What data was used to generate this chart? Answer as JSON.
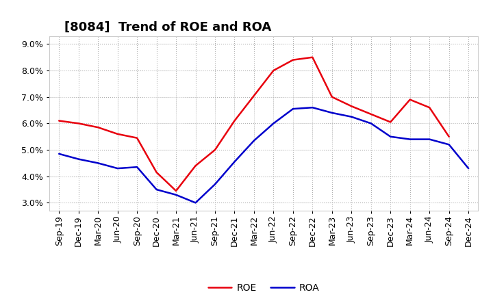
{
  "title": "[8084]  Trend of ROE and ROA",
  "x_labels": [
    "Sep-19",
    "Dec-19",
    "Mar-20",
    "Jun-20",
    "Sep-20",
    "Dec-20",
    "Mar-21",
    "Jun-21",
    "Sep-21",
    "Dec-21",
    "Mar-22",
    "Jun-22",
    "Sep-22",
    "Dec-22",
    "Mar-23",
    "Jun-23",
    "Sep-23",
    "Dec-23",
    "Mar-24",
    "Jun-24",
    "Sep-24",
    "Dec-24"
  ],
  "roe": [
    6.1,
    6.0,
    5.85,
    5.6,
    5.45,
    4.15,
    3.45,
    4.4,
    5.0,
    6.1,
    7.05,
    8.0,
    8.4,
    8.5,
    7.0,
    6.65,
    6.35,
    6.05,
    6.9,
    6.6,
    5.5,
    null
  ],
  "roa": [
    4.85,
    4.65,
    4.5,
    4.3,
    4.35,
    3.5,
    3.3,
    3.0,
    3.7,
    4.55,
    5.35,
    6.0,
    6.55,
    6.6,
    6.4,
    6.25,
    6.0,
    5.5,
    5.4,
    5.4,
    5.2,
    4.3
  ],
  "roe_color": "#e8000d",
  "roa_color": "#0000cc",
  "background_color": "#ffffff",
  "plot_bg_color": "#ffffff",
  "grid_color": "#b0b0b0",
  "ylim": [
    2.7,
    9.3
  ],
  "yticks": [
    3.0,
    4.0,
    5.0,
    6.0,
    7.0,
    8.0,
    9.0
  ],
  "title_fontsize": 13,
  "legend_fontsize": 10,
  "tick_fontsize": 9
}
